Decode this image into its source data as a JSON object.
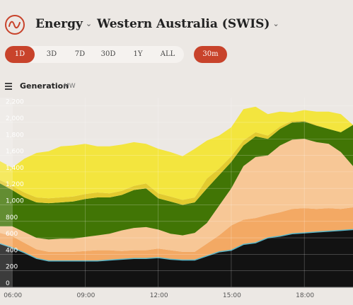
{
  "header": {
    "app": "Energy",
    "region": "Western Australia (SWIS)"
  },
  "range_buttons": [
    {
      "label": "1D",
      "active": true
    },
    {
      "label": "3D",
      "active": false
    },
    {
      "label": "7D",
      "active": false
    },
    {
      "label": "30D",
      "active": false
    },
    {
      "label": "1Y",
      "active": false
    },
    {
      "label": "ALL",
      "active": false
    }
  ],
  "interval": "30m",
  "chart_title": "Generation",
  "chart_unit": "MW",
  "colors": {
    "accent": "#c8432b",
    "coal": "#121212",
    "gas": "#f3a964",
    "distillate": "#f7c796",
    "wind": "#417505",
    "solar_utility": "#e2ca2f",
    "rooftop_solar": "#f3e53e",
    "battery": "#5ab7c9"
  },
  "chart_data": {
    "type": "area",
    "stacked": true,
    "x": [
      "05:30",
      "06:00",
      "06:30",
      "07:00",
      "07:30",
      "08:00",
      "08:30",
      "09:00",
      "09:30",
      "10:00",
      "10:30",
      "11:00",
      "11:30",
      "12:00",
      "12:30",
      "13:00",
      "13:30",
      "14:00",
      "14:30",
      "15:00",
      "15:30",
      "16:00",
      "16:30",
      "17:00",
      "17:30",
      "18:00",
      "18:30",
      "19:00",
      "19:30",
      "20:00"
    ],
    "x_ticks": [
      "06:00",
      "09:00",
      "12:00",
      "15:00",
      "18:00"
    ],
    "y_ticks": [
      0,
      200,
      400,
      600,
      800,
      1000,
      1200,
      1400,
      1600,
      1800,
      2000,
      2200
    ],
    "ylim": [
      0,
      2300
    ],
    "grid": true,
    "series": [
      {
        "values": [
          530,
          480,
          420,
          350,
          320,
          320,
          320,
          320,
          320,
          330,
          340,
          350,
          350,
          360,
          340,
          330,
          330,
          380,
          430,
          450,
          520,
          540,
          600,
          620,
          650,
          660,
          670,
          680,
          690,
          700
        ]
      },
      {
        "values": [
          130,
          140,
          120,
          110,
          110,
          110,
          110,
          120,
          130,
          120,
          100,
          100,
          100,
          110,
          110,
          100,
          100,
          150,
          200,
          300,
          300,
          300,
          280,
          290,
          300,
          300,
          280,
          280,
          260,
          270
        ]
      },
      {
        "values": [
          80,
          120,
          130,
          140,
          150,
          160,
          160,
          170,
          180,
          200,
          250,
          270,
          280,
          230,
          200,
          200,
          230,
          250,
          360,
          450,
          650,
          740,
          720,
          810,
          840,
          840,
          810,
          780,
          690,
          500
        ]
      },
      {
        "values": [
          520,
          440,
          420,
          430,
          440,
          440,
          450,
          460,
          460,
          440,
          430,
          460,
          470,
          380,
          390,
          370,
          370,
          420,
          370,
          320,
          250,
          250,
          200,
          200,
          210,
          210,
          200,
          180,
          240,
          500
        ]
      },
      {
        "values": [
          40,
          50,
          60,
          60,
          60,
          60,
          60,
          60,
          60,
          50,
          50,
          50,
          60,
          60,
          60,
          60,
          60,
          120,
          80,
          70,
          60,
          50,
          40,
          30,
          20,
          10,
          10,
          0,
          0,
          0
        ]
      },
      {
        "values": [
          230,
          220,
          410,
          540,
          570,
          620,
          620,
          610,
          560,
          570,
          560,
          530,
          480,
          540,
          540,
          530,
          590,
          460,
          400,
          350,
          380,
          310,
          260,
          180,
          100,
          130,
          160,
          210,
          220,
          0
        ]
      }
    ]
  }
}
